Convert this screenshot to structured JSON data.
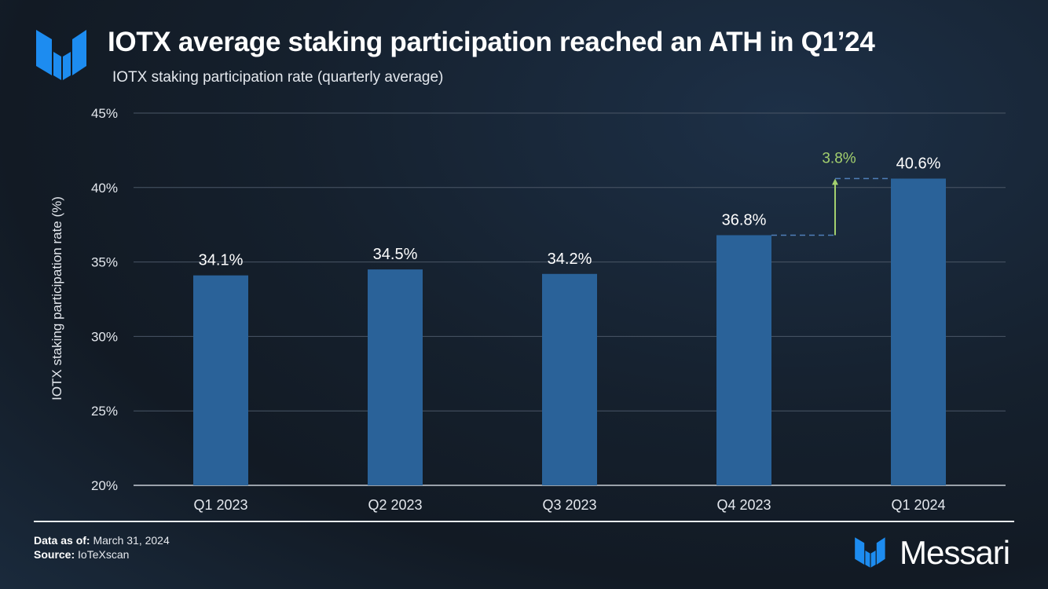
{
  "header": {
    "title": "IOTX average staking participation reached an ATH in Q1’24",
    "subtitle": "IOTX staking participation rate (quarterly average)",
    "logo_icon": "messari-logo-icon"
  },
  "chart_data": {
    "type": "bar",
    "title": "IOTX average staking participation reached an ATH in Q1’24",
    "subtitle": "IOTX staking participation rate (quarterly average)",
    "xlabel": "",
    "ylabel": "IOTX staking participation rate (%)",
    "categories": [
      "Q1 2023",
      "Q2 2023",
      "Q3 2023",
      "Q4 2023",
      "Q1 2024"
    ],
    "values": [
      34.1,
      34.5,
      34.2,
      36.8,
      40.6
    ],
    "data_labels": [
      "34.1%",
      "34.5%",
      "34.2%",
      "36.8%",
      "40.6%"
    ],
    "ylim": [
      20,
      45
    ],
    "yticks": [
      20,
      25,
      30,
      35,
      40,
      45
    ],
    "ytick_labels": [
      "20%",
      "25%",
      "30%",
      "35%",
      "40%",
      "45%"
    ],
    "grid": true,
    "bar_color": "#2a6299",
    "annotation": {
      "text": "3.8%",
      "from": 36.8,
      "to": 40.6,
      "color": "#a3d06e"
    }
  },
  "footer": {
    "data_as_of_label": "Data as of:",
    "data_as_of_value": "March 31, 2024",
    "source_label": "Source:",
    "source_value": "IoTeXscan",
    "brand": "Messari"
  }
}
